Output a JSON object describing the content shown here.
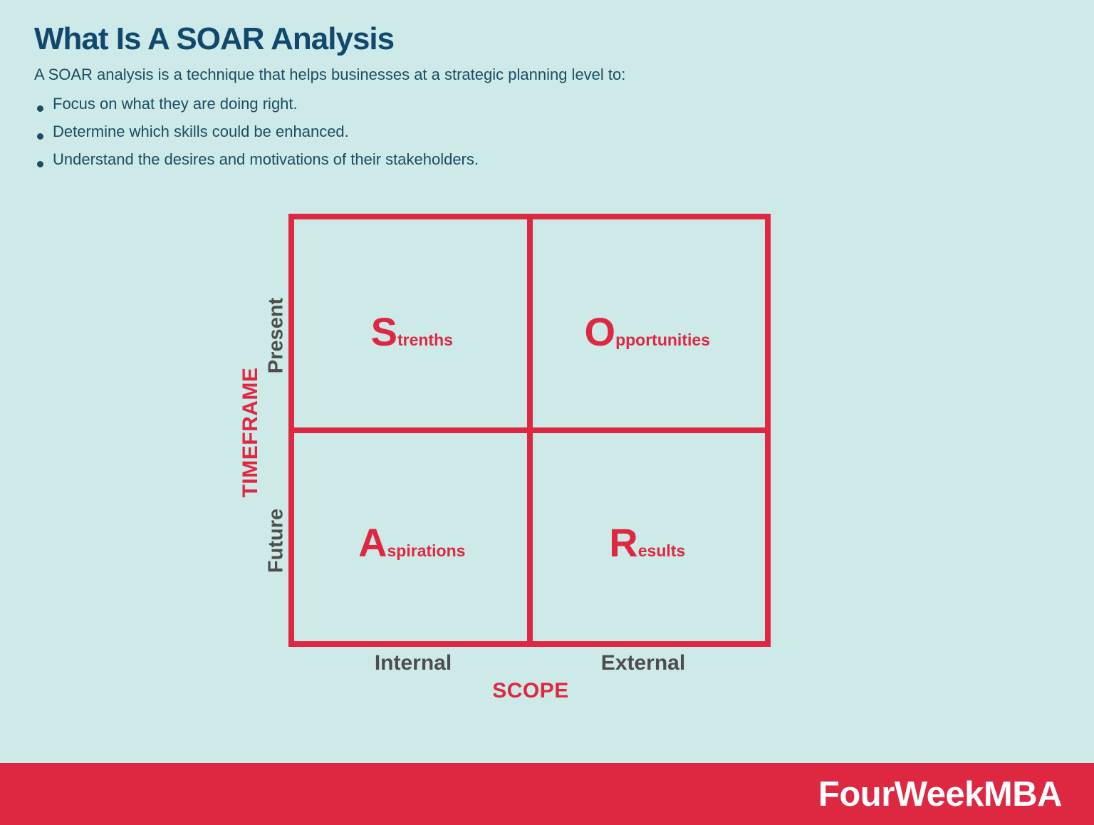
{
  "colors": {
    "background": "#cdeae8",
    "accent_red": "#de2740",
    "title_navy": "#11496e",
    "body_navy": "#1c4c62",
    "axis_gray": "#4d4d4d",
    "footer_text": "#ffffff"
  },
  "header": {
    "title": "What Is A SOAR Analysis",
    "subtitle": "A SOAR analysis is a technique that helps businesses at a strategic planning level to:",
    "bullets": [
      "Focus on what they are doing right.",
      "Determine which skills could be enhanced.",
      "Understand the desires and motivations of their stakeholders."
    ]
  },
  "matrix": {
    "quadrants": [
      {
        "id": "strengths",
        "initial": "S",
        "rest": "trenths",
        "position": "top-left"
      },
      {
        "id": "opportunities",
        "initial": "O",
        "rest": "pportunities",
        "position": "top-right"
      },
      {
        "id": "aspirations",
        "initial": "A",
        "rest": "spirations",
        "position": "bottom-left"
      },
      {
        "id": "results",
        "initial": "R",
        "rest": "esults",
        "position": "bottom-right"
      }
    ],
    "y_axis": {
      "label": "TIMEFRAME",
      "top": "Present",
      "bottom": "Future"
    },
    "x_axis": {
      "label": "SCOPE",
      "left": "Internal",
      "right": "External"
    }
  },
  "footer": {
    "brand": "FourWeekMBA"
  }
}
